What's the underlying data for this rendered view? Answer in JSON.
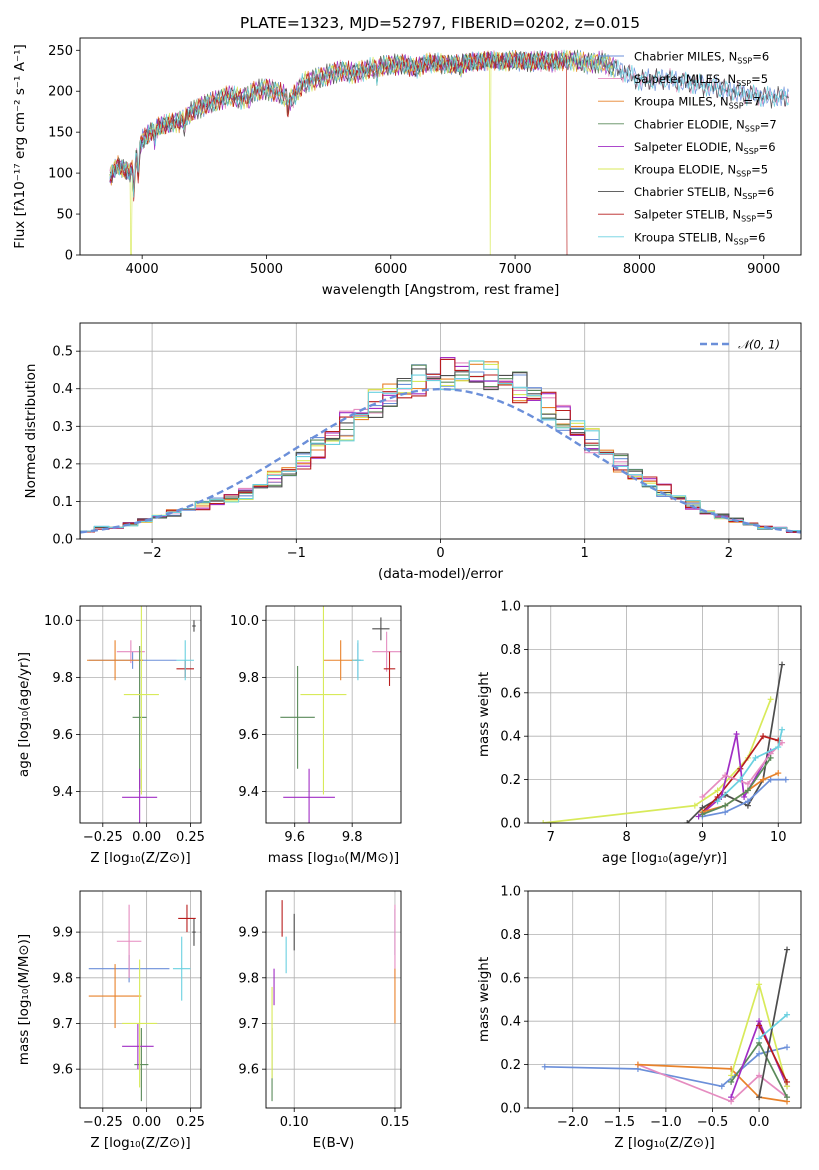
{
  "title": "PLATE=1323, MJD=52797, FIBERID=0202, z=0.015",
  "colors": {
    "Chabrier MILES": "#6b8fd9",
    "Salpeter MILES": "#e58cc0",
    "Kroupa MILES": "#e8822a",
    "Chabrier ELODIE": "#5a8a5a",
    "Salpeter ELODIE": "#a12ec4",
    "Kroupa ELODIE": "#d8ea5a",
    "Chabrier STELIB": "#4d4d4d",
    "Salpeter STELIB": "#b81e1e",
    "Kroupa STELIB": "#6ad0e0"
  },
  "models": [
    {
      "name": "Chabrier MILES",
      "nssp": "6"
    },
    {
      "name": "Salpeter MILES",
      "nssp": "5"
    },
    {
      "name": "Kroupa MILES",
      "nssp": "7"
    },
    {
      "name": "Chabrier ELODIE",
      "nssp": "7"
    },
    {
      "name": "Salpeter ELODIE",
      "nssp": "6"
    },
    {
      "name": "Kroupa ELODIE",
      "nssp": "5"
    },
    {
      "name": "Chabrier STELIB",
      "nssp": "6"
    },
    {
      "name": "Salpeter STELIB",
      "nssp": "5"
    },
    {
      "name": "Kroupa STELIB",
      "nssp": "6"
    }
  ],
  "chart_data": [
    {
      "id": "spectrum",
      "type": "line",
      "xlabel": "wavelength [Angstrom, rest frame]",
      "ylabel": "Flux [fλ10⁻¹⁷ erg cm⁻² s⁻¹ A⁻¹]",
      "xlim": [
        3500,
        9300
      ],
      "ylim": [
        0,
        265
      ],
      "xticks": [
        4000,
        5000,
        6000,
        7000,
        8000,
        9000
      ],
      "yticks": [
        0,
        50,
        100,
        150,
        200,
        250
      ],
      "grid": false,
      "legend_position": "right",
      "series_note": "nine overlapping model spectra",
      "flux_anchors": {
        "x": [
          3740,
          3800,
          3900,
          4000,
          4100,
          4200,
          4300,
          4400,
          4500,
          4600,
          4700,
          4800,
          4900,
          5000,
          5100,
          5200,
          5300,
          5400,
          5500,
          5600,
          5700,
          5800,
          5900,
          6000,
          6100,
          6200,
          6300,
          6400,
          6500,
          6600,
          6700,
          6800,
          6900,
          7000,
          7100,
          7200,
          7300,
          7400,
          7500,
          7600,
          7700,
          7800,
          7900,
          8000,
          8200,
          8400,
          8600,
          8800,
          9000,
          9200
        ],
        "y": [
          95,
          110,
          100,
          140,
          155,
          160,
          163,
          175,
          183,
          188,
          195,
          190,
          200,
          203,
          198,
          190,
          210,
          215,
          220,
          225,
          222,
          226,
          230,
          232,
          233,
          228,
          235,
          234,
          232,
          235,
          236,
          238,
          236,
          238,
          236,
          237,
          236,
          238,
          237,
          234,
          236,
          228,
          222,
          213,
          215,
          210,
          205,
          198,
          193,
          193
        ]
      },
      "dropouts": [
        {
          "model": "Kroupa ELODIE",
          "x": [
            3910,
            6800
          ]
        },
        {
          "model": "Salpeter STELIB",
          "x": [
            7420
          ]
        }
      ]
    },
    {
      "id": "residual-histogram",
      "type": "histogram",
      "xlabel": "(data-model)/error",
      "ylabel": "Normed distribution",
      "xlim": [
        -2.5,
        2.5
      ],
      "ylim": [
        0,
        0.575
      ],
      "xticks": [
        -2,
        -1,
        0,
        1,
        2
      ],
      "yticks": [
        0.0,
        0.1,
        0.2,
        0.3,
        0.4,
        0.5
      ],
      "grid": true,
      "bins": {
        "start": -2.5,
        "width": 0.1,
        "count": 50
      },
      "base_density": [
        0.02,
        0.03,
        0.03,
        0.04,
        0.05,
        0.06,
        0.07,
        0.08,
        0.09,
        0.1,
        0.11,
        0.12,
        0.14,
        0.16,
        0.18,
        0.21,
        0.24,
        0.27,
        0.3,
        0.33,
        0.36,
        0.38,
        0.4,
        0.42,
        0.43,
        0.44,
        0.44,
        0.44,
        0.43,
        0.42,
        0.4,
        0.38,
        0.35,
        0.32,
        0.29,
        0.26,
        0.23,
        0.2,
        0.17,
        0.15,
        0.13,
        0.11,
        0.09,
        0.07,
        0.06,
        0.05,
        0.04,
        0.03,
        0.03,
        0.02
      ],
      "reference_curve": {
        "name": "𝒩(0, 1)",
        "mean": 0,
        "sigma": 1
      },
      "legend_position": "upper right"
    },
    {
      "id": "age-vs-metallicity",
      "type": "errorbar",
      "xlabel": "Z [log₁₀(Z/Z⊙)]",
      "ylabel": "age  [log₁₀(age/yr)]",
      "xlim": [
        -0.38,
        0.31
      ],
      "ylim": [
        9.29,
        10.05
      ],
      "xticks": [
        -0.25,
        0.0,
        0.25
      ],
      "yticks": [
        9.4,
        9.6,
        9.8,
        10.0
      ],
      "grid": true,
      "points": [
        {
          "model": "Chabrier MILES",
          "x": -0.08,
          "y": 9.86,
          "xerr": 0.25,
          "yerr": 0.03
        },
        {
          "model": "Salpeter MILES",
          "x": -0.09,
          "y": 9.89,
          "xerr": 0.08,
          "yerr": 0.04
        },
        {
          "model": "Kroupa MILES",
          "x": -0.18,
          "y": 9.86,
          "xerr": 0.16,
          "yerr": 0.07
        },
        {
          "model": "Chabrier ELODIE",
          "x": -0.04,
          "y": 9.66,
          "xerr": 0.04,
          "yerr": 0.25
        },
        {
          "model": "Salpeter ELODIE",
          "x": -0.04,
          "y": 9.38,
          "xerr": 0.1,
          "yerr": 0.1
        },
        {
          "model": "Kroupa ELODIE",
          "x": -0.03,
          "y": 9.74,
          "xerr": 0.1,
          "yerr": 0.35
        },
        {
          "model": "Chabrier STELIB",
          "x": 0.27,
          "y": 9.98,
          "xerr": 0.01,
          "yerr": 0.02
        },
        {
          "model": "Salpeter STELIB",
          "x": 0.22,
          "y": 9.83,
          "xerr": 0.05,
          "yerr": 0.03
        },
        {
          "model": "Kroupa STELIB",
          "x": 0.22,
          "y": 9.86,
          "xerr": 0.05,
          "yerr": 0.07
        }
      ]
    },
    {
      "id": "age-vs-mass",
      "type": "errorbar",
      "xlabel": "mass [log₁₀(M/M⊙)]",
      "ylabel": "",
      "xlim": [
        9.5,
        9.97
      ],
      "ylim": [
        9.29,
        10.05
      ],
      "xticks": [
        9.6,
        9.8
      ],
      "yticks": [
        9.4,
        9.6,
        9.8,
        10.0
      ],
      "grid": true,
      "points": [
        {
          "model": "Chabrier MILES",
          "x": 9.82,
          "y": 9.86,
          "xerr": 0.01,
          "yerr": 0.06
        },
        {
          "model": "Salpeter MILES",
          "x": 9.92,
          "y": 9.89,
          "xerr": 0.05,
          "yerr": 0.07
        },
        {
          "model": "Kroupa MILES",
          "x": 9.76,
          "y": 9.86,
          "xerr": 0.06,
          "yerr": 0.07
        },
        {
          "model": "Chabrier ELODIE",
          "x": 9.61,
          "y": 9.66,
          "xerr": 0.06,
          "yerr": 0.18
        },
        {
          "model": "Salpeter ELODIE",
          "x": 9.65,
          "y": 9.38,
          "xerr": 0.09,
          "yerr": 0.1
        },
        {
          "model": "Kroupa ELODIE",
          "x": 9.7,
          "y": 9.74,
          "xerr": 0.08,
          "yerr": 0.35
        },
        {
          "model": "Chabrier STELIB",
          "x": 9.9,
          "y": 9.97,
          "xerr": 0.03,
          "yerr": 0.04
        },
        {
          "model": "Salpeter STELIB",
          "x": 9.93,
          "y": 9.83,
          "xerr": 0.02,
          "yerr": 0.06
        },
        {
          "model": "Kroupa STELIB",
          "x": 9.82,
          "y": 9.86,
          "xerr": 0.02,
          "yerr": 0.07
        }
      ]
    },
    {
      "id": "mass-weight-vs-age",
      "type": "line",
      "xlabel": "age  [log₁₀(age/yr)]",
      "ylabel": "mass weight",
      "xlim": [
        6.7,
        10.3
      ],
      "ylim": [
        0,
        1.0
      ],
      "xticks": [
        7,
        8,
        9,
        10
      ],
      "yticks": [
        0.0,
        0.2,
        0.4,
        0.6,
        0.8,
        1.0
      ],
      "grid": true,
      "series": [
        {
          "model": "Kroupa ELODIE",
          "x": [
            6.9,
            8.9,
            9.2,
            9.6,
            9.9
          ],
          "y": [
            0.0,
            0.08,
            0.15,
            0.3,
            0.57
          ]
        },
        {
          "model": "Chabrier STELIB",
          "x": [
            8.8,
            9.0,
            9.3,
            9.6,
            9.8,
            10.05
          ],
          "y": [
            0.0,
            0.07,
            0.13,
            0.08,
            0.2,
            0.73
          ]
        },
        {
          "model": "Salpeter STELIB",
          "x": [
            9.0,
            9.2,
            9.5,
            9.8,
            10.0
          ],
          "y": [
            0.05,
            0.12,
            0.25,
            0.4,
            0.38
          ]
        },
        {
          "model": "Salpeter ELODIE",
          "x": [
            8.95,
            9.25,
            9.45,
            9.55,
            9.9
          ],
          "y": [
            0.03,
            0.12,
            0.41,
            0.12,
            0.33
          ]
        },
        {
          "model": "Salpeter MILES",
          "x": [
            9.0,
            9.3,
            9.6,
            9.9,
            10.05
          ],
          "y": [
            0.12,
            0.22,
            0.18,
            0.32,
            0.37
          ]
        },
        {
          "model": "Chabrier MILES",
          "x": [
            9.0,
            9.3,
            9.6,
            9.9,
            10.1
          ],
          "y": [
            0.03,
            0.05,
            0.1,
            0.2,
            0.2
          ]
        },
        {
          "model": "Kroupa MILES",
          "x": [
            9.0,
            9.3,
            9.6,
            9.8,
            10.0
          ],
          "y": [
            0.05,
            0.08,
            0.15,
            0.2,
            0.23
          ]
        },
        {
          "model": "Chabrier ELODIE",
          "x": [
            9.0,
            9.3,
            9.6,
            9.9
          ],
          "y": [
            0.04,
            0.08,
            0.15,
            0.3
          ]
        },
        {
          "model": "Kroupa STELIB",
          "x": [
            9.2,
            9.5,
            9.7,
            10.0,
            10.05
          ],
          "y": [
            0.1,
            0.2,
            0.3,
            0.35,
            0.43
          ]
        }
      ]
    },
    {
      "id": "mass-vs-metallicity",
      "type": "errorbar",
      "xlabel": "Z [log₁₀(Z/Z⊙)]",
      "ylabel": "mass [log₁₀(M/M⊙)]",
      "xlim": [
        -0.38,
        0.31
      ],
      "ylim": [
        9.515,
        9.99
      ],
      "xticks": [
        -0.25,
        0.0,
        0.25
      ],
      "yticks": [
        9.6,
        9.7,
        9.8,
        9.9
      ],
      "grid": true,
      "points": [
        {
          "model": "Chabrier MILES",
          "x": -0.1,
          "y": 9.82,
          "xerr": 0.23,
          "yerr": 0.03
        },
        {
          "model": "Salpeter MILES",
          "x": -0.1,
          "y": 9.88,
          "xerr": 0.07,
          "yerr": 0.08
        },
        {
          "model": "Kroupa MILES",
          "x": -0.18,
          "y": 9.76,
          "xerr": 0.15,
          "yerr": 0.07
        },
        {
          "model": "Chabrier ELODIE",
          "x": -0.03,
          "y": 9.61,
          "xerr": 0.04,
          "yerr": 0.08
        },
        {
          "model": "Salpeter ELODIE",
          "x": -0.05,
          "y": 9.65,
          "xerr": 0.09,
          "yerr": 0.05
        },
        {
          "model": "Kroupa ELODIE",
          "x": -0.04,
          "y": 9.7,
          "xerr": 0.1,
          "yerr": 0.14
        },
        {
          "model": "Chabrier STELIB",
          "x": 0.27,
          "y": 9.9,
          "xerr": 0.01,
          "yerr": 0.03
        },
        {
          "model": "Salpeter STELIB",
          "x": 0.23,
          "y": 9.93,
          "xerr": 0.05,
          "yerr": 0.03
        },
        {
          "model": "Kroupa STELIB",
          "x": 0.2,
          "y": 9.82,
          "xerr": 0.05,
          "yerr": 0.07
        }
      ]
    },
    {
      "id": "mass-vs-extinction",
      "type": "errorbar",
      "xlabel": "E(B-V)",
      "ylabel": "",
      "xlim": [
        0.086,
        0.153
      ],
      "ylim": [
        9.515,
        9.99
      ],
      "xticks": [
        0.1,
        0.15
      ],
      "yticks": [
        9.6,
        9.7,
        9.8,
        9.9
      ],
      "grid": true,
      "points": [
        {
          "model": "Chabrier MILES",
          "x": 0.15,
          "y": 9.9,
          "xerr": 0.0,
          "yerr": 0.05
        },
        {
          "model": "Salpeter MILES",
          "x": 0.15,
          "y": 9.88,
          "xerr": 0.0,
          "yerr": 0.08
        },
        {
          "model": "Kroupa MILES",
          "x": 0.15,
          "y": 9.76,
          "xerr": 0.0,
          "yerr": 0.06
        },
        {
          "model": "Chabrier ELODIE",
          "x": 0.089,
          "y": 9.61,
          "xerr": 0.0,
          "yerr": 0.08
        },
        {
          "model": "Salpeter ELODIE",
          "x": 0.09,
          "y": 9.78,
          "xerr": 0.0,
          "yerr": 0.04
        },
        {
          "model": "Kroupa ELODIE",
          "x": 0.089,
          "y": 9.68,
          "xerr": 0.0,
          "yerr": 0.1
        },
        {
          "model": "Chabrier STELIB",
          "x": 0.1,
          "y": 9.9,
          "xerr": 0.0,
          "yerr": 0.04
        },
        {
          "model": "Salpeter STELIB",
          "x": 0.094,
          "y": 9.93,
          "xerr": 0.0,
          "yerr": 0.04
        },
        {
          "model": "Kroupa STELIB",
          "x": 0.096,
          "y": 9.85,
          "xerr": 0.0,
          "yerr": 0.04
        }
      ]
    },
    {
      "id": "mass-weight-vs-metallicity",
      "type": "line",
      "xlabel": "Z [log₁₀(Z/Z⊙)]",
      "ylabel": "mass weight",
      "xlim": [
        -2.48,
        0.45
      ],
      "ylim": [
        0,
        1.0
      ],
      "xticks": [
        -2.0,
        -1.5,
        -1.0,
        -0.5,
        0.0
      ],
      "yticks": [
        0.0,
        0.2,
        0.4,
        0.6,
        0.8,
        1.0
      ],
      "grid": true,
      "series": [
        {
          "model": "Chabrier MILES",
          "x": [
            -2.3,
            -1.3,
            -0.4,
            0.0,
            0.3
          ],
          "y": [
            0.19,
            0.18,
            0.1,
            0.25,
            0.28
          ]
        },
        {
          "model": "Salpeter MILES",
          "x": [
            -1.3,
            -0.3,
            0.0,
            0.3
          ],
          "y": [
            0.2,
            0.03,
            0.15,
            0.05
          ]
        },
        {
          "model": "Kroupa MILES",
          "x": [
            -1.3,
            -0.3,
            0.0,
            0.3
          ],
          "y": [
            0.2,
            0.18,
            0.05,
            0.03
          ]
        },
        {
          "model": "Chabrier ELODIE",
          "x": [
            -0.3,
            0.0,
            0.3
          ],
          "y": [
            0.12,
            0.3,
            0.05
          ]
        },
        {
          "model": "Salpeter ELODIE",
          "x": [
            -0.3,
            0.0,
            0.3
          ],
          "y": [
            0.05,
            0.4,
            0.1
          ]
        },
        {
          "model": "Kroupa ELODIE",
          "x": [
            -0.3,
            0.0,
            0.3
          ],
          "y": [
            0.15,
            0.57,
            0.1
          ]
        },
        {
          "model": "Chabrier STELIB",
          "x": [
            0.0,
            0.3
          ],
          "y": [
            0.05,
            0.73
          ]
        },
        {
          "model": "Salpeter STELIB",
          "x": [
            0.0,
            0.3
          ],
          "y": [
            0.38,
            0.12
          ]
        },
        {
          "model": "Kroupa STELIB",
          "x": [
            0.0,
            0.3
          ],
          "y": [
            0.32,
            0.43
          ]
        }
      ]
    }
  ]
}
